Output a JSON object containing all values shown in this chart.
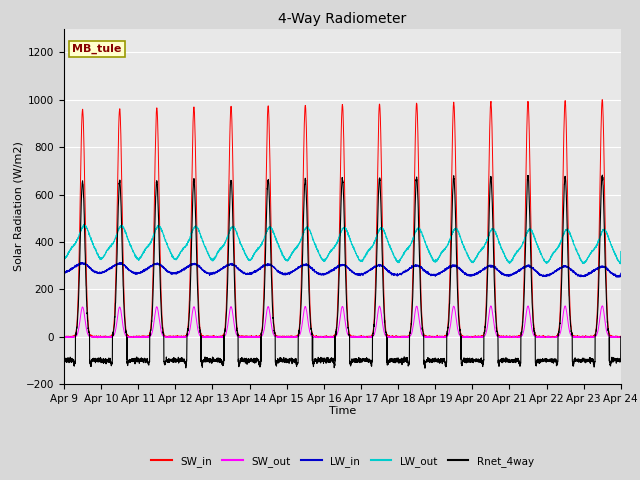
{
  "title": "4-Way Radiometer",
  "xlabel": "Time",
  "ylabel": "Solar Radiation (W/m2)",
  "ylim": [
    -200,
    1300
  ],
  "yticks": [
    -200,
    0,
    200,
    400,
    600,
    800,
    1000,
    1200
  ],
  "n_days": 15,
  "annotation_text": "MB_tule",
  "colors": {
    "SW_in": "#ff0000",
    "SW_out": "#ff00ff",
    "LW_in": "#0000cc",
    "LW_out": "#00cccc",
    "Rnet_4way": "#000000"
  },
  "x_tick_labels": [
    "Apr 9",
    "Apr 10",
    "Apr 11",
    "Apr 12",
    "Apr 13",
    "Apr 14",
    "Apr 15",
    "Apr 16",
    "Apr 17",
    "Apr 18",
    "Apr 19",
    "Apr 20",
    "Apr 21",
    "Apr 22",
    "Apr 23",
    "Apr 24"
  ],
  "fig_width": 6.4,
  "fig_height": 4.8,
  "dpi": 100
}
